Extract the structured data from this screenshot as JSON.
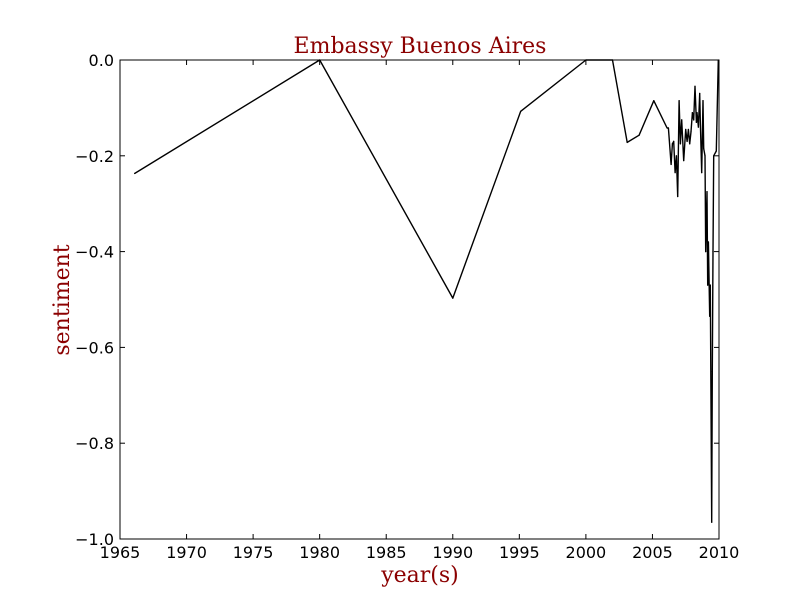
{
  "chart_data": {
    "type": "line",
    "title": "Embassy Buenos Aires",
    "xlabel": "year(s)",
    "ylabel": "sentiment",
    "xlim": [
      1965,
      2010
    ],
    "ylim": [
      -1.0,
      0.0
    ],
    "xticks": [
      1965,
      1970,
      1975,
      1980,
      1985,
      1990,
      1995,
      2000,
      2005,
      2010
    ],
    "yticks": [
      0.0,
      -0.2,
      -0.4,
      -0.6,
      -0.8,
      -1.0
    ],
    "xtick_labels": [
      "1965",
      "1970",
      "1975",
      "1980",
      "1985",
      "1990",
      "1995",
      "2000",
      "2005",
      "2010"
    ],
    "ytick_labels": [
      "0.0",
      "−0.2",
      "−0.4",
      "−0.6",
      "−0.8",
      "−1.0"
    ],
    "grid": false,
    "legend": "none",
    "colors": {
      "text_accent": "#8b0000",
      "line": "#000000",
      "axes": "#000000"
    },
    "series": [
      {
        "x": [
          1966.1,
          1980.0,
          1990.0,
          1995.1,
          2000.0,
          2002.0,
          2003.1,
          2004.0,
          2005.1,
          2006.1,
          2006.2,
          2006.4,
          2006.5,
          2006.6,
          2006.7,
          2006.8,
          2006.9,
          2007.0,
          2007.1,
          2007.2,
          2007.35,
          2007.5,
          2007.6,
          2007.7,
          2007.8,
          2007.9,
          2008.0,
          2008.1,
          2008.2,
          2008.3,
          2008.35,
          2008.45,
          2008.55,
          2008.6,
          2008.7,
          2008.8,
          2008.85,
          2008.95,
          2009.0,
          2009.1,
          2009.15,
          2009.2,
          2009.3,
          2009.35,
          2009.45,
          2009.5,
          2009.55,
          2009.6,
          2009.8,
          2009.95
        ],
        "y": [
          -0.237,
          0.0,
          -0.497,
          -0.107,
          0.0,
          0.0,
          -0.172,
          -0.157,
          -0.085,
          -0.142,
          -0.142,
          -0.218,
          -0.175,
          -0.17,
          -0.235,
          -0.2,
          -0.285,
          -0.085,
          -0.175,
          -0.125,
          -0.21,
          -0.145,
          -0.17,
          -0.145,
          -0.175,
          -0.15,
          -0.11,
          -0.125,
          -0.055,
          -0.13,
          -0.11,
          -0.14,
          -0.07,
          -0.135,
          -0.235,
          -0.085,
          -0.185,
          -0.2,
          -0.4,
          -0.275,
          -0.47,
          -0.38,
          -0.535,
          -0.47,
          -0.965,
          -0.65,
          -0.4,
          -0.2,
          -0.19,
          0.0
        ]
      }
    ]
  }
}
